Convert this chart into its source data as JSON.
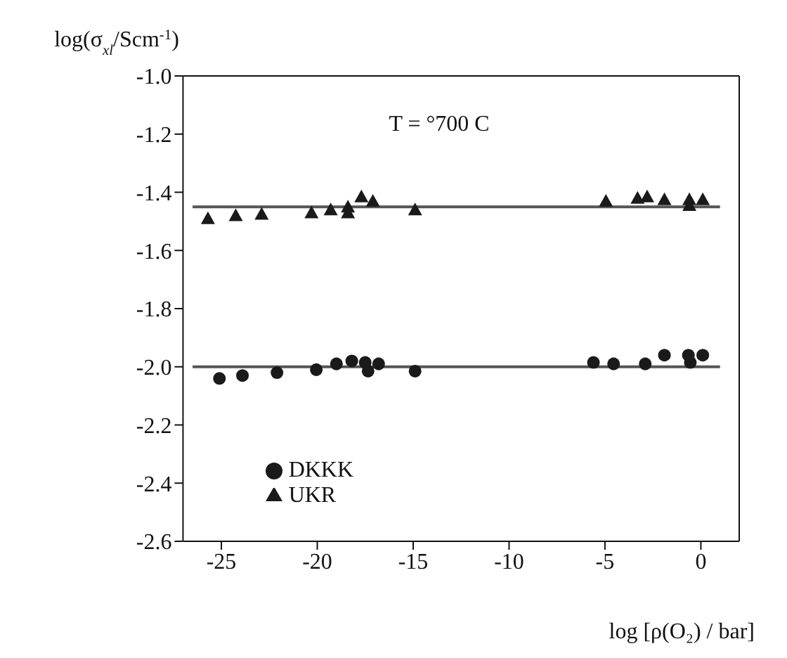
{
  "chart_data": {
    "type": "scatter",
    "xlabel": "log [ρ(O₂) / bar]",
    "ylabel": "log(σ$_{xl}$/Scm$^{-1}$)",
    "annotations": [
      "T = °700 C"
    ],
    "xlim": [
      -27,
      2
    ],
    "xticks": [
      -25,
      -20,
      -15,
      -10,
      -5,
      0
    ],
    "ylim": [
      -2.6,
      -1.0
    ],
    "yticks": [
      {
        "value": -2.6,
        "label": "-2.6"
      },
      {
        "value": -2.4,
        "label": "-2.4"
      },
      {
        "value": -2.2,
        "label": "-2.2"
      },
      {
        "value": -2.0,
        "label": "-2.0"
      },
      {
        "value": -1.8,
        "label": "-1.8"
      },
      {
        "value": -1.6,
        "label": "-1.6"
      },
      {
        "value": -1.4,
        "label": "-1.4"
      },
      {
        "value": -1.2,
        "label": "-1.2"
      },
      {
        "value": -1.0,
        "label": "-1.0"
      }
    ],
    "grid": false,
    "legend": "bottom left",
    "series": [
      {
        "name": "DKKK",
        "marker": "circle",
        "color": "#1a1a1a",
        "x": [
          -25.1,
          -23.9,
          -22.1,
          -20.05,
          -19.0,
          -18.2,
          -17.5,
          -17.35,
          -16.8,
          -14.9,
          -5.6,
          -4.55,
          -2.9,
          -1.9,
          -0.65,
          -0.55,
          0.1
        ],
        "values": [
          -2.04,
          -2.03,
          -2.02,
          -2.01,
          -1.99,
          -1.98,
          -1.985,
          -2.015,
          -1.99,
          -2.015,
          -1.985,
          -1.99,
          -1.99,
          -1.96,
          -1.96,
          -1.985,
          -1.96
        ]
      },
      {
        "name": "UKR",
        "marker": "triangle",
        "color": "#1a1a1a",
        "x": [
          -25.7,
          -24.25,
          -22.9,
          -20.3,
          -19.3,
          -18.4,
          -18.4,
          -17.7,
          -17.1,
          -14.9,
          -4.95,
          -3.3,
          -2.8,
          -1.9,
          -0.6,
          -0.6,
          0.1
        ],
        "values": [
          -1.49,
          -1.48,
          -1.475,
          -1.47,
          -1.46,
          -1.45,
          -1.47,
          -1.415,
          -1.43,
          -1.46,
          -1.43,
          -1.42,
          -1.415,
          -1.425,
          -1.425,
          -1.445,
          -1.425
        ]
      },
      {
        "type": "line",
        "marker": "none",
        "line_style": "solid",
        "color": "#555555",
        "x": [
          -26.5,
          1
        ],
        "values": [
          -1.45,
          -1.45
        ]
      },
      {
        "type": "line",
        "marker": "none",
        "line_style": "solid",
        "color": "#555555",
        "x": [
          -26.5,
          1
        ],
        "values": [
          -2.0,
          -2.0
        ]
      }
    ]
  }
}
